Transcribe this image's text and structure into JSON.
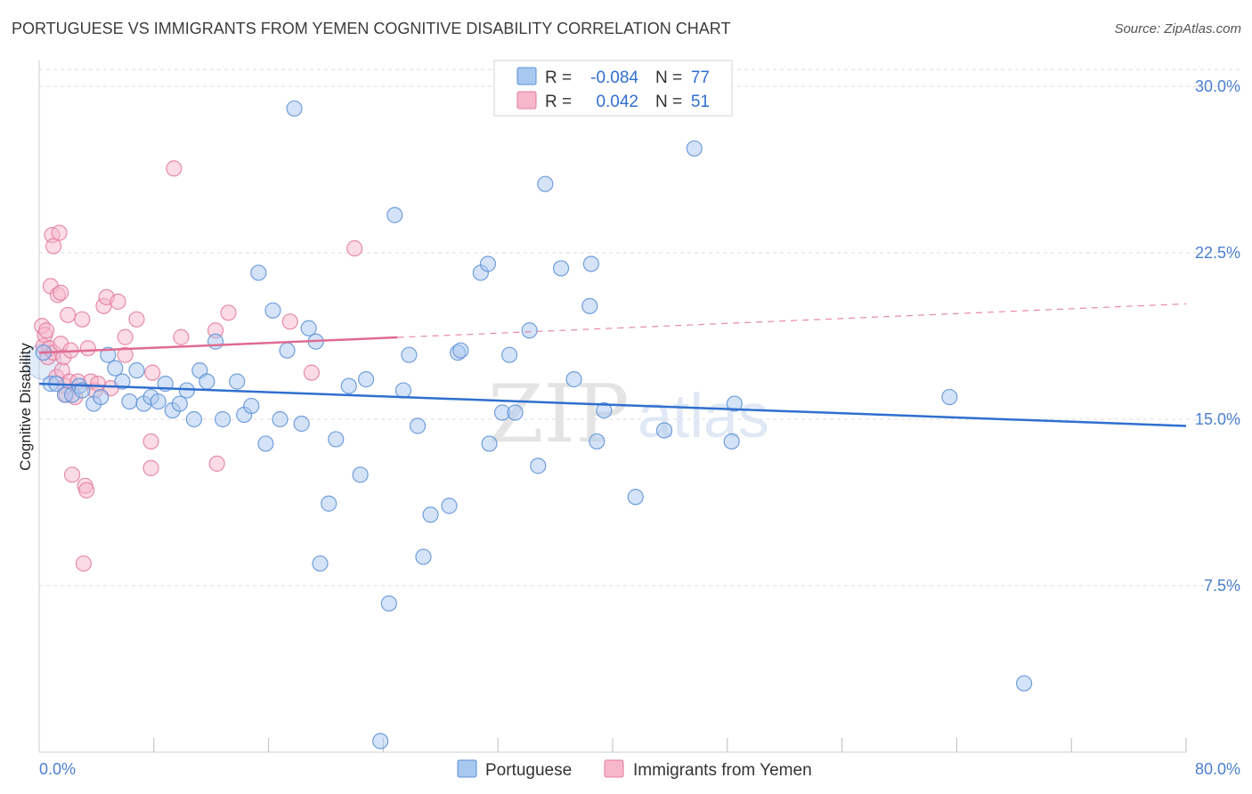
{
  "title": "PORTUGUESE VS IMMIGRANTS FROM YEMEN COGNITIVE DISABILITY CORRELATION CHART",
  "source": "Source: ZipAtlas.com",
  "watermark": {
    "zip": "ZIP",
    "atlas": "atlas"
  },
  "colors": {
    "portuguese_fill": "#a9c8ef",
    "portuguese_stroke": "#5b8fd6",
    "portuguese_line": "#2f6fcf",
    "yemen_fill": "#f7b7cb",
    "yemen_stroke": "#e27a9c",
    "yemen_line": "#e06b92",
    "tick_label": "#4a7fd0",
    "grid": "#dddddd"
  },
  "legend_top": {
    "rows": [
      {
        "r_label": "R =",
        "r_value": "-0.084",
        "n_label": "N =",
        "n_value": "77"
      },
      {
        "r_label": "R =",
        "r_value": "0.042",
        "n_label": "N =",
        "n_value": "51"
      }
    ]
  },
  "legend_bottom": {
    "items": [
      "Portuguese",
      "Immigrants from Yemen"
    ]
  },
  "chart_data": {
    "type": "scatter",
    "ylabel": "Cognitive Disability",
    "xlim": [
      0,
      80
    ],
    "ylim": [
      0,
      31
    ],
    "y_ticks": [
      7.5,
      15.0,
      22.5,
      30.0
    ],
    "y_tick_labels": [
      "7.5%",
      "15.0%",
      "22.5%",
      "30.0%"
    ],
    "x_tick_labels": [
      "0.0%",
      "80.0%"
    ],
    "grid": true,
    "legend_position": "top-center",
    "series": [
      {
        "name": "Portuguese",
        "r": -0.084,
        "n": 77,
        "trend": {
          "x": [
            0,
            80
          ],
          "y": [
            16.6,
            14.7
          ]
        },
        "points": [
          [
            0.3,
            18.0
          ],
          [
            0.8,
            16.6
          ],
          [
            1.2,
            16.6
          ],
          [
            1.8,
            16.1
          ],
          [
            2.3,
            16.1
          ],
          [
            2.8,
            16.5
          ],
          [
            3.0,
            16.3
          ],
          [
            3.8,
            15.7
          ],
          [
            4.3,
            16.0
          ],
          [
            4.8,
            17.9
          ],
          [
            5.3,
            17.3
          ],
          [
            5.8,
            16.7
          ],
          [
            6.3,
            15.8
          ],
          [
            6.8,
            17.2
          ],
          [
            7.3,
            15.7
          ],
          [
            7.8,
            16.0
          ],
          [
            8.3,
            15.8
          ],
          [
            8.8,
            16.6
          ],
          [
            9.3,
            15.4
          ],
          [
            9.8,
            15.7
          ],
          [
            10.3,
            16.3
          ],
          [
            10.8,
            15.0
          ],
          [
            11.2,
            17.2
          ],
          [
            11.7,
            16.7
          ],
          [
            12.3,
            18.5
          ],
          [
            12.8,
            15.0
          ],
          [
            13.8,
            16.7
          ],
          [
            14.3,
            15.2
          ],
          [
            14.8,
            15.6
          ],
          [
            15.3,
            21.6
          ],
          [
            15.8,
            13.9
          ],
          [
            16.3,
            19.9
          ],
          [
            16.8,
            15.0
          ],
          [
            17.3,
            18.1
          ],
          [
            17.8,
            29.0
          ],
          [
            18.3,
            14.8
          ],
          [
            18.8,
            19.1
          ],
          [
            19.3,
            18.5
          ],
          [
            19.6,
            8.5
          ],
          [
            20.2,
            11.2
          ],
          [
            20.7,
            14.1
          ],
          [
            21.6,
            16.5
          ],
          [
            22.4,
            12.5
          ],
          [
            22.8,
            16.8
          ],
          [
            23.8,
            0.5
          ],
          [
            24.4,
            6.7
          ],
          [
            24.8,
            24.2
          ],
          [
            25.4,
            16.3
          ],
          [
            25.8,
            17.9
          ],
          [
            26.4,
            14.7
          ],
          [
            26.8,
            8.8
          ],
          [
            27.3,
            10.7
          ],
          [
            28.6,
            11.1
          ],
          [
            29.2,
            18.0
          ],
          [
            29.4,
            18.1
          ],
          [
            30.8,
            21.6
          ],
          [
            31.3,
            22.0
          ],
          [
            31.4,
            13.9
          ],
          [
            32.3,
            15.3
          ],
          [
            32.8,
            17.9
          ],
          [
            33.2,
            15.3
          ],
          [
            34.2,
            19.0
          ],
          [
            34.8,
            12.9
          ],
          [
            35.3,
            25.6
          ],
          [
            36.4,
            21.8
          ],
          [
            37.3,
            16.8
          ],
          [
            38.4,
            20.1
          ],
          [
            38.5,
            22.0
          ],
          [
            38.9,
            14.0
          ],
          [
            39.4,
            15.4
          ],
          [
            41.6,
            11.5
          ],
          [
            43.6,
            14.5
          ],
          [
            45.7,
            27.2
          ],
          [
            48.3,
            14.0
          ],
          [
            48.5,
            15.7
          ],
          [
            63.5,
            16.0
          ],
          [
            68.7,
            3.1
          ]
        ]
      },
      {
        "name": "Immigrants from Yemen",
        "r": 0.042,
        "n": 51,
        "trend": {
          "x": [
            0,
            80
          ],
          "y": [
            18.0,
            20.2
          ],
          "solid_until_x": 25
        },
        "points": [
          [
            0.2,
            19.2
          ],
          [
            0.3,
            18.3
          ],
          [
            0.4,
            18.8
          ],
          [
            0.5,
            19.0
          ],
          [
            0.6,
            17.8
          ],
          [
            0.7,
            18.2
          ],
          [
            0.8,
            21.0
          ],
          [
            0.9,
            23.3
          ],
          [
            1.0,
            22.8
          ],
          [
            1.0,
            18.0
          ],
          [
            1.2,
            16.9
          ],
          [
            1.3,
            20.6
          ],
          [
            1.4,
            23.4
          ],
          [
            1.5,
            20.7
          ],
          [
            1.5,
            18.4
          ],
          [
            1.6,
            17.2
          ],
          [
            1.7,
            17.8
          ],
          [
            1.8,
            16.5
          ],
          [
            1.9,
            16.1
          ],
          [
            2.0,
            19.7
          ],
          [
            2.1,
            16.7
          ],
          [
            2.2,
            18.1
          ],
          [
            2.3,
            12.5
          ],
          [
            2.5,
            16.0
          ],
          [
            2.7,
            16.7
          ],
          [
            3.0,
            19.5
          ],
          [
            3.1,
            8.5
          ],
          [
            3.2,
            12.0
          ],
          [
            3.3,
            11.8
          ],
          [
            3.4,
            18.2
          ],
          [
            3.6,
            16.7
          ],
          [
            3.9,
            16.3
          ],
          [
            4.1,
            16.6
          ],
          [
            4.5,
            20.1
          ],
          [
            4.7,
            20.5
          ],
          [
            5.0,
            16.4
          ],
          [
            5.5,
            20.3
          ],
          [
            6.0,
            18.7
          ],
          [
            6.0,
            17.9
          ],
          [
            6.8,
            19.5
          ],
          [
            7.8,
            12.8
          ],
          [
            7.8,
            14.0
          ],
          [
            7.9,
            17.1
          ],
          [
            9.4,
            26.3
          ],
          [
            9.9,
            18.7
          ],
          [
            12.3,
            19.0
          ],
          [
            12.4,
            13.0
          ],
          [
            13.2,
            19.8
          ],
          [
            17.5,
            19.4
          ],
          [
            19.0,
            17.1
          ],
          [
            22.0,
            22.7
          ]
        ]
      }
    ]
  }
}
